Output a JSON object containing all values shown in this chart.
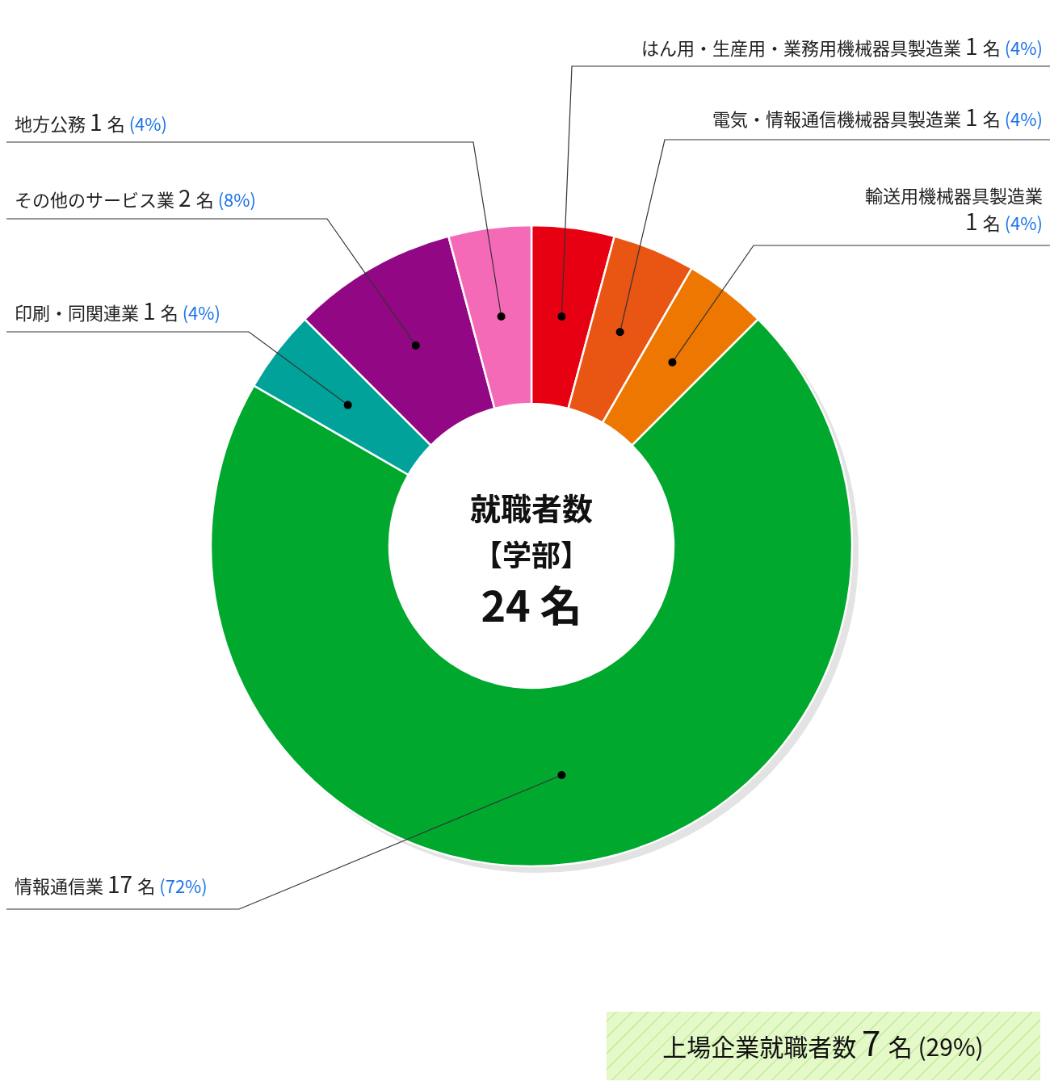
{
  "chart_data": {
    "type": "donut",
    "title": "就職者数",
    "subtitle": "【学部】",
    "categories": [
      "はん用・生産用・業務用機械器具製造業",
      "電気・情報通信機械器具製造業",
      "輸送用機械器具製造業",
      "情報通信業",
      "印刷・同関連業",
      "その他のサービス業",
      "地方公務"
    ],
    "values": [
      1,
      1,
      1,
      17,
      1,
      2,
      1
    ],
    "colors": [
      "#e60012",
      "#e95513",
      "#ed7700",
      "#00a82d",
      "#00a29a",
      "#920783",
      "#f46ab7"
    ],
    "value_labels": [
      "1 名 (4%)",
      "1 名 (4%)",
      "1 名 (4%)",
      "17 名 (72%)",
      "1 名 (4%)",
      "2 名 (8%)",
      "1 名 (4%)"
    ],
    "annotations": [
      "24 名",
      "上場企業就職者数 7 名 (29%)"
    ]
  }
}
